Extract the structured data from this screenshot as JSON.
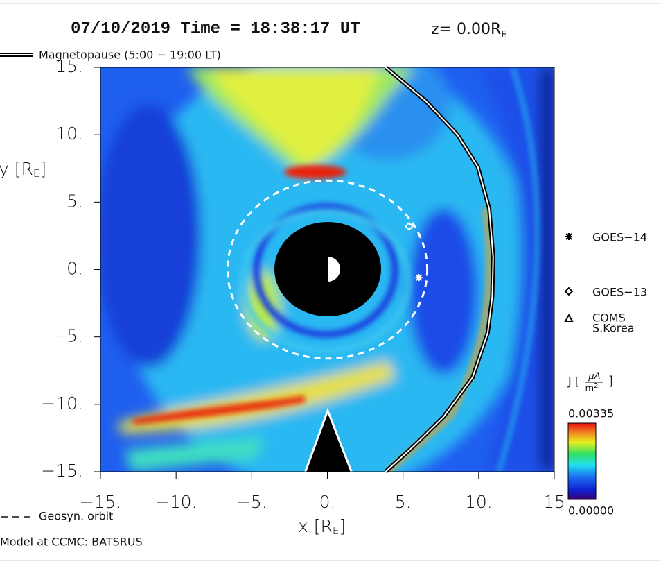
{
  "chart_data": {
    "type": "heatmap",
    "title": "07/10/2019 Time = 18:38:17 UT",
    "z_label": {
      "text": "z= 0.00R",
      "sub": "E"
    },
    "x_label": {
      "text": "x [R",
      "sub": "E",
      "close": "]"
    },
    "y_label": {
      "text": "y [R",
      "sub": "E",
      "close": "]"
    },
    "xlim": [
      -15,
      15
    ],
    "ylim": [
      -15,
      15
    ],
    "xticks": [
      {
        "value": -15,
        "label": "−15."
      },
      {
        "value": -10,
        "label": "−10."
      },
      {
        "value": -5,
        "label": "−5."
      },
      {
        "value": 0,
        "label": "0."
      },
      {
        "value": 5,
        "label": "5."
      },
      {
        "value": 10,
        "label": "10."
      },
      15
    ],
    "yticks": [
      {
        "value": 15,
        "label": "15."
      },
      {
        "value": 10,
        "label": "10."
      },
      {
        "value": 5,
        "label": "5."
      },
      {
        "value": 0,
        "label": "0."
      },
      {
        "value": -5,
        "label": "−5."
      },
      {
        "value": -10,
        "label": "−10."
      },
      {
        "value": -15,
        "label": "−15."
      }
    ],
    "series": [
      {
        "name": "Magnetopause (5:00 − 19:00 LT)",
        "type": "line",
        "color": "#000000",
        "x": [
          3.85,
          6.5,
          8.6,
          9.95,
          10.7,
          10.96,
          10.9,
          10.6,
          9.6,
          7.7,
          5.8,
          3.85
        ],
        "y": [
          15,
          12.5,
          10,
          7.6,
          4.5,
          0.9,
          -2,
          -4.7,
          -8,
          -10.9,
          -13,
          -15
        ]
      },
      {
        "name": "Geosyn. orbit",
        "type": "circle",
        "color": "#ffffff",
        "radius": 6.6
      }
    ],
    "satellites": [
      {
        "name": "GOES−14",
        "marker": "asterisk",
        "x": 6.05,
        "y": -0.6
      },
      {
        "name": "GOES−13",
        "marker": "diamond",
        "x": 5.4,
        "y": 3.2
      },
      {
        "name": [
          "COMS",
          "S.Korea"
        ],
        "marker": "triangle"
      }
    ],
    "colorbar": {
      "label": {
        "text": "J [",
        "num": "μA",
        "den": "m",
        "den_sup": "2",
        "close": "]"
      },
      "clim": [
        0,
        0.00335
      ],
      "cticks": [
        {
          "value": 0,
          "label": "0.00000"
        },
        0.00335
      ]
    },
    "source": "Model at CCMC: BATSRUS"
  }
}
